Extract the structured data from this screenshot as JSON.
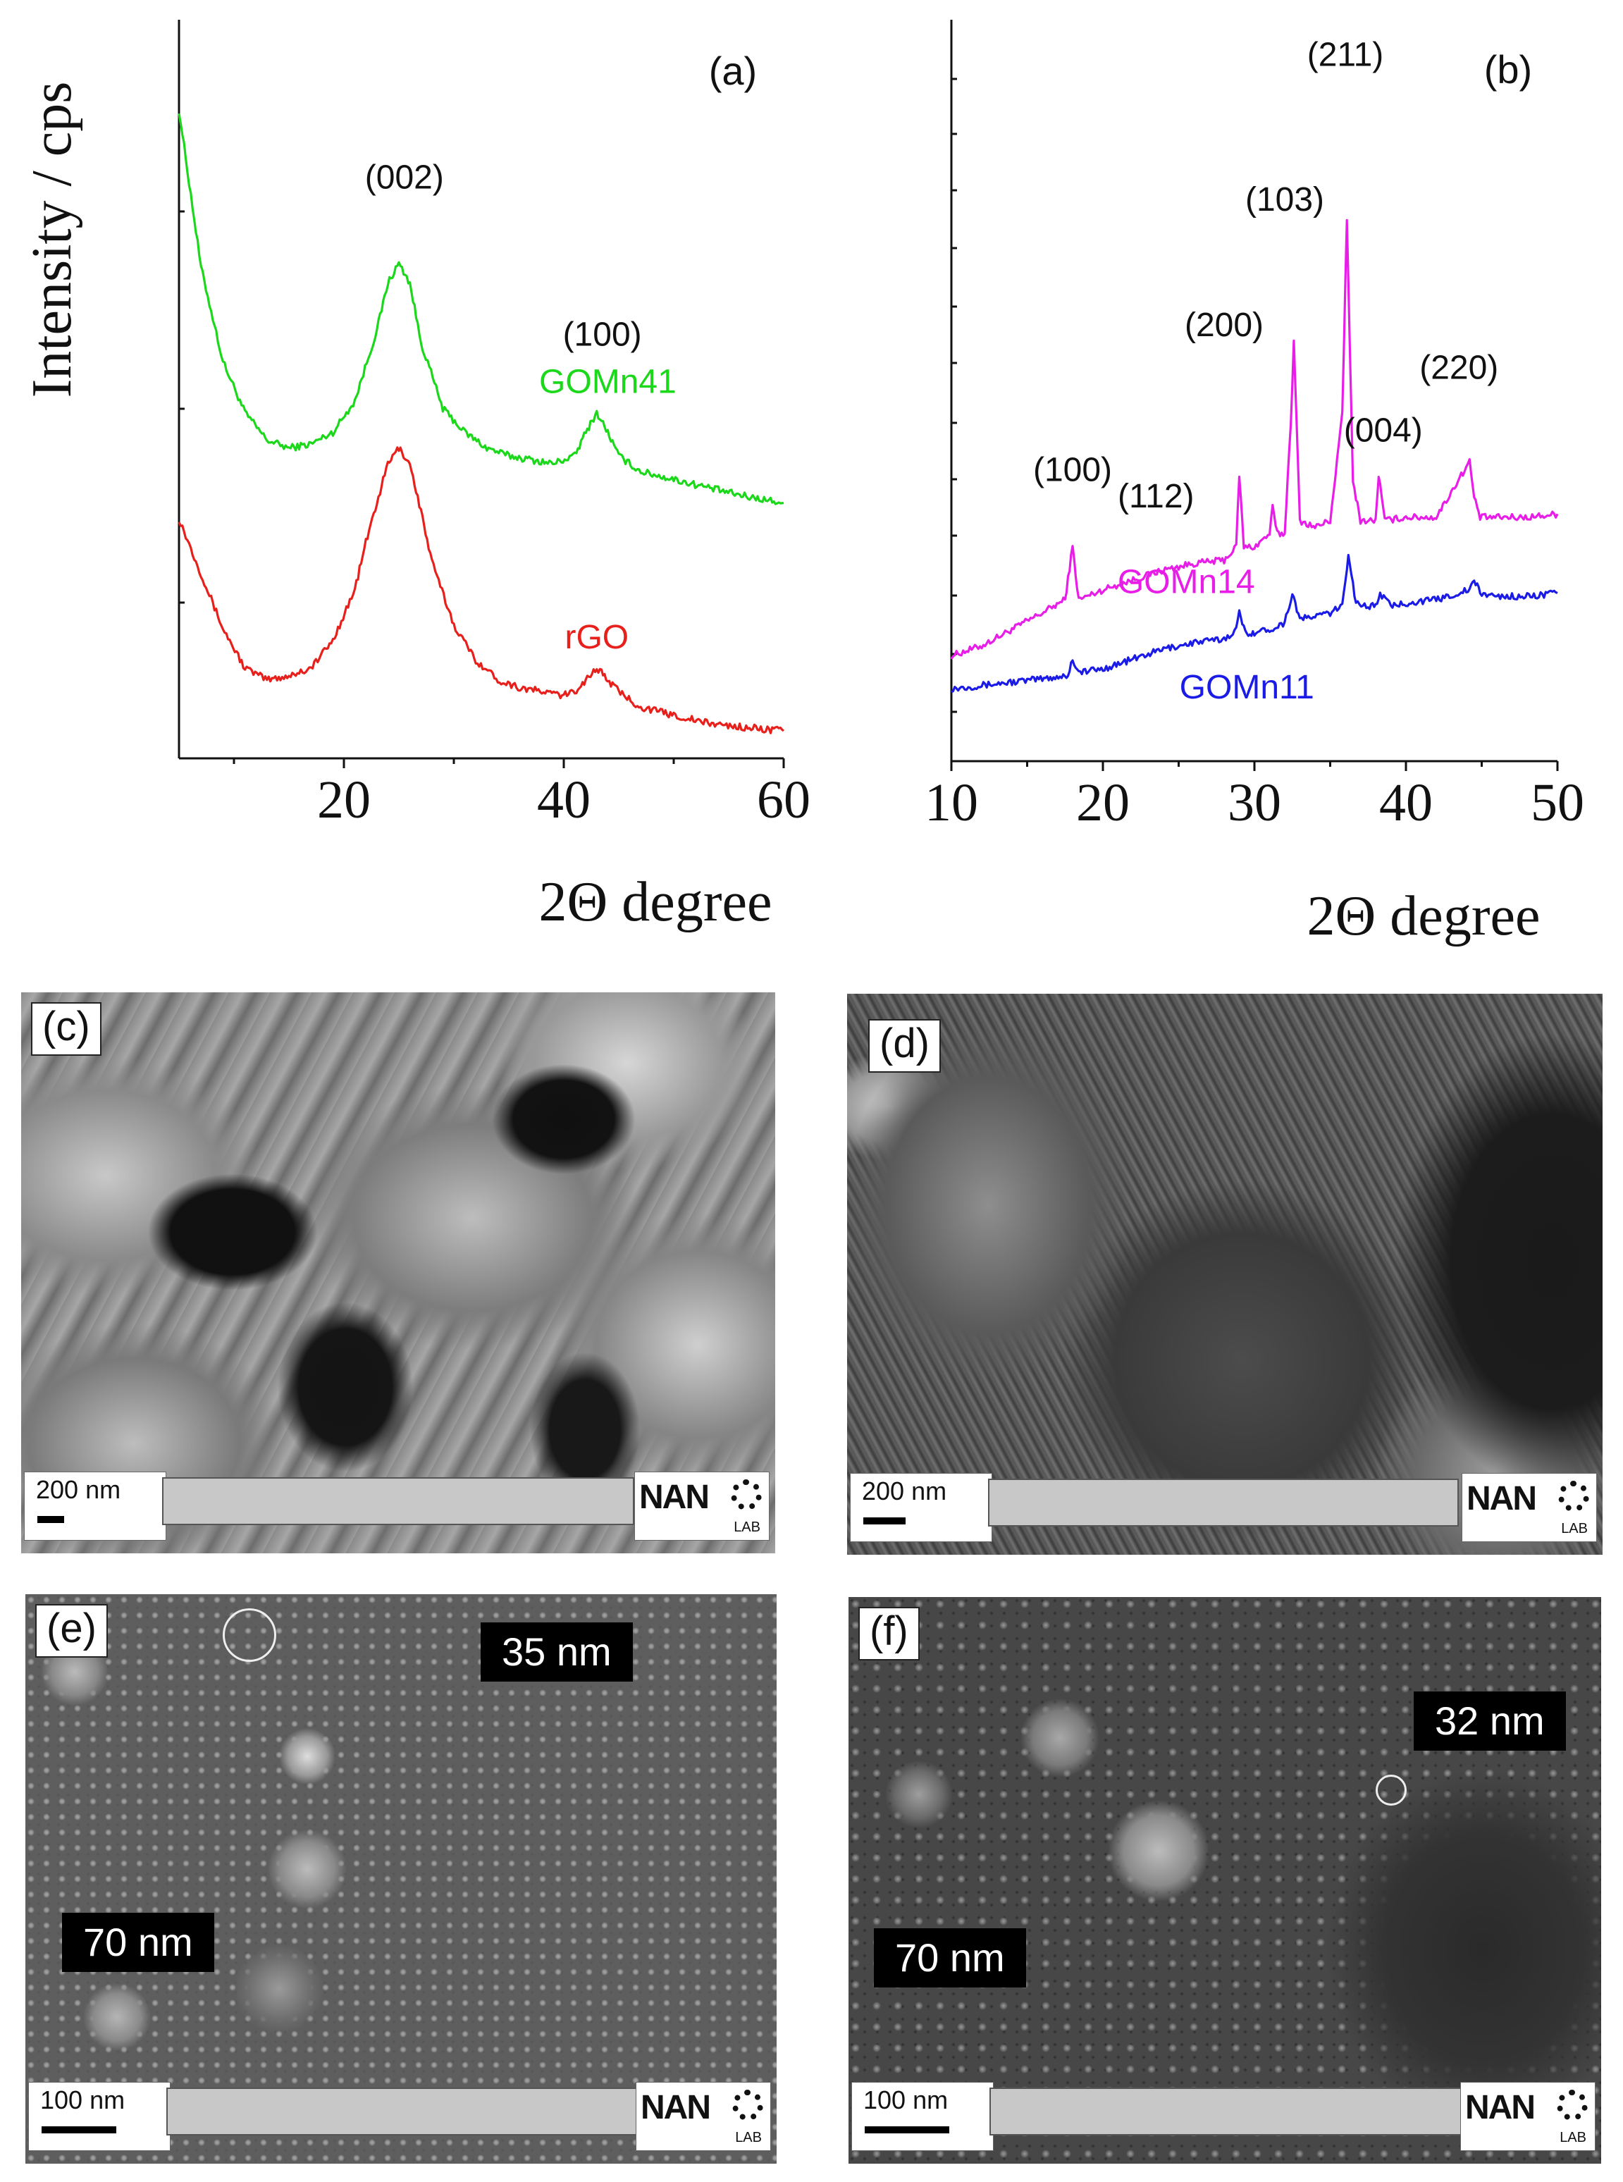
{
  "chart_data": [
    {
      "panel": "(a)",
      "type": "line",
      "ylabel": "Intensity / cps",
      "xlabel": "2Θ degree",
      "xlim": [
        5,
        60
      ],
      "xticks": [
        20,
        40,
        60
      ],
      "yticks_labeled": false,
      "series": [
        {
          "name": "GOMn41",
          "color": "#1bd81b",
          "x": [
            5,
            7,
            9,
            11,
            13,
            15,
            17,
            19,
            21,
            23,
            24,
            25,
            26,
            27,
            29,
            31,
            33,
            35,
            37,
            39,
            41,
            42,
            43,
            44,
            45,
            47,
            50,
            53,
            56,
            60
          ],
          "y": [
            1.62,
            1.22,
            0.98,
            0.85,
            0.78,
            0.76,
            0.77,
            0.8,
            0.88,
            1.06,
            1.18,
            1.23,
            1.18,
            1.03,
            0.86,
            0.8,
            0.76,
            0.74,
            0.73,
            0.72,
            0.74,
            0.8,
            0.85,
            0.8,
            0.74,
            0.7,
            0.68,
            0.66,
            0.64,
            0.62
          ]
        },
        {
          "name": "rGO",
          "color": "#e8201c",
          "x": [
            5,
            7,
            9,
            11,
            13,
            15,
            17,
            19,
            21,
            22,
            23,
            24,
            25,
            26,
            27,
            28,
            30,
            32,
            34,
            36,
            38,
            40,
            41,
            42,
            43,
            44,
            45,
            47,
            50,
            53,
            56,
            60
          ],
          "y": [
            0.58,
            0.44,
            0.3,
            0.2,
            0.17,
            0.18,
            0.2,
            0.27,
            0.4,
            0.52,
            0.62,
            0.72,
            0.76,
            0.72,
            0.6,
            0.47,
            0.31,
            0.22,
            0.17,
            0.15,
            0.14,
            0.13,
            0.14,
            0.17,
            0.2,
            0.17,
            0.14,
            0.1,
            0.08,
            0.06,
            0.05,
            0.04
          ]
        }
      ],
      "peak_labels": [
        {
          "text": "(002)",
          "x": 25.5,
          "y": 1.42
        },
        {
          "text": "(100)",
          "x": 43.5,
          "y": 1.02
        }
      ],
      "series_labels": [
        {
          "text": "GOMn41",
          "x": 44,
          "y": 0.9,
          "color": "#1bd81b"
        },
        {
          "text": "rGO",
          "x": 43,
          "y": 0.25,
          "color": "#e8201c"
        }
      ]
    },
    {
      "panel": "(b)",
      "type": "line",
      "xlabel": "2Θ degree",
      "xlim": [
        10,
        50
      ],
      "xticks": [
        10,
        20,
        30,
        40,
        50
      ],
      "yticks_labeled": false,
      "series": [
        {
          "name": "GOMn14",
          "color": "#e81ee8",
          "x": [
            10,
            12,
            14,
            16,
            17.5,
            18,
            18.4,
            20,
            22,
            24,
            26,
            28,
            28.8,
            29,
            29.3,
            30,
            31,
            31.2,
            31.5,
            32,
            32.4,
            32.6,
            33,
            34,
            35,
            35.8,
            36.1,
            36.5,
            37,
            38,
            38.2,
            38.6,
            40,
            42,
            44.2,
            44.5,
            44.9,
            46,
            48,
            50
          ],
          "y": [
            0.07,
            0.1,
            0.15,
            0.2,
            0.24,
            0.4,
            0.24,
            0.27,
            0.3,
            0.33,
            0.35,
            0.36,
            0.4,
            0.62,
            0.4,
            0.4,
            0.44,
            0.52,
            0.44,
            0.44,
            0.78,
            1.02,
            0.48,
            0.46,
            0.48,
            0.8,
            1.4,
            0.6,
            0.48,
            0.48,
            0.62,
            0.48,
            0.49,
            0.49,
            0.66,
            0.55,
            0.49,
            0.49,
            0.49,
            0.5
          ]
        },
        {
          "name": "GOMn11",
          "color": "#1b1be8",
          "x": [
            10,
            12,
            14,
            16,
            17.7,
            18,
            18.4,
            20,
            22,
            24,
            26,
            28,
            28.8,
            29,
            29.4,
            30,
            31,
            32,
            32.5,
            33,
            34,
            35,
            35.8,
            36.2,
            36.7,
            37.5,
            38,
            38.3,
            39,
            40,
            42,
            44.2,
            44.5,
            44.9,
            46,
            48,
            50
          ],
          "y": [
            -0.03,
            -0.02,
            -0.01,
            0.0,
            0.01,
            0.06,
            0.02,
            0.03,
            0.06,
            0.09,
            0.11,
            0.12,
            0.15,
            0.2,
            0.14,
            0.14,
            0.15,
            0.17,
            0.26,
            0.18,
            0.19,
            0.2,
            0.22,
            0.38,
            0.23,
            0.22,
            0.22,
            0.26,
            0.22,
            0.23,
            0.24,
            0.27,
            0.3,
            0.26,
            0.25,
            0.25,
            0.26
          ]
        }
      ],
      "peak_labels": [
        {
          "text": "(100)",
          "x": 18,
          "y": 0.6
        },
        {
          "text": "(112)",
          "x": 23.5,
          "y": 0.52
        },
        {
          "text": "(200)",
          "x": 28,
          "y": 1.04
        },
        {
          "text": "(103)",
          "x": 32,
          "y": 1.42
        },
        {
          "text": "(211)",
          "x": 36,
          "y": 1.86
        },
        {
          "text": "(004)",
          "x": 38.5,
          "y": 0.72
        },
        {
          "text": "(220)",
          "x": 43.5,
          "y": 0.91
        }
      ],
      "series_labels": [
        {
          "text": "GOMn14",
          "x": 25.5,
          "y": 0.26,
          "color": "#e81ee8"
        },
        {
          "text": "GOMn11",
          "x": 29.5,
          "y": -0.06,
          "color": "#1b1be8"
        }
      ]
    }
  ],
  "panels": {
    "a": {
      "tag": "(a)"
    },
    "b": {
      "tag": "(b)"
    },
    "c": {
      "tag": "(c)",
      "scale": "200 nm",
      "logo": "NAN"
    },
    "d": {
      "tag": "(d)",
      "scale": "200 nm",
      "logo": "NAN"
    },
    "e": {
      "tag": "(e)",
      "scale": "100 nm",
      "logo": "NAN",
      "size_labels": [
        "35 nm",
        "70 nm"
      ]
    },
    "f": {
      "tag": "(f)",
      "scale": "100 nm",
      "logo": "NAN",
      "size_labels": [
        "32 nm",
        "70 nm"
      ]
    }
  },
  "logo_sub": "LAB"
}
